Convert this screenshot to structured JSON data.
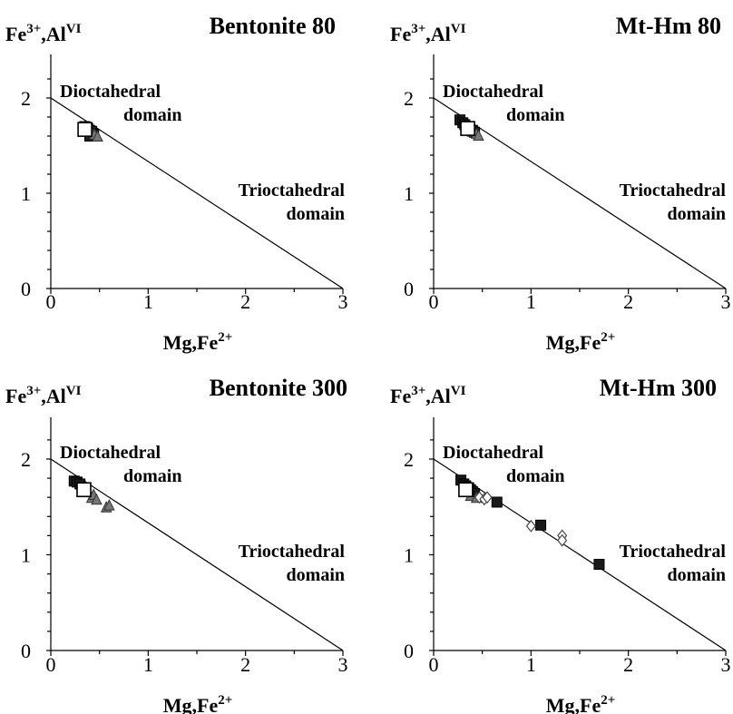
{
  "chart_data": [
    {
      "type": "scatter",
      "title": "Bentonite 80",
      "ylabel": {
        "main": "Fe",
        "sup1": "3+",
        "mid": ",Al",
        "sup2": "VI"
      },
      "xlabel": {
        "main": "Mg,Fe",
        "sup": "2+"
      },
      "xlim": [
        0,
        3
      ],
      "ylim": [
        0,
        2
      ],
      "xticks": [
        "0",
        "1",
        "2",
        "3"
      ],
      "yticks": [
        "0",
        "1",
        "2"
      ],
      "boundary_line": [
        [
          0,
          2
        ],
        [
          3,
          0
        ]
      ],
      "annotations": [
        {
          "lines": [
            "Dioctahedral",
            "domain"
          ]
        },
        {
          "lines": [
            "Trioctahedral",
            "domain"
          ]
        }
      ],
      "series": [
        {
          "marker": "square-dark",
          "points": [
            [
              0.35,
              1.7
            ],
            [
              0.38,
              1.68
            ],
            [
              0.4,
              1.66
            ],
            [
              0.42,
              1.65
            ],
            [
              0.44,
              1.62
            ],
            [
              0.4,
              1.6
            ]
          ]
        },
        {
          "marker": "triangle-grey",
          "points": [
            [
              0.42,
              1.64
            ],
            [
              0.45,
              1.62
            ],
            [
              0.48,
              1.6
            ]
          ]
        },
        {
          "marker": "square-open",
          "points": [
            [
              0.35,
              1.67
            ]
          ]
        }
      ]
    },
    {
      "type": "scatter",
      "title": "Mt-Hm 80",
      "ylabel": {
        "main": "Fe",
        "sup1": "3+",
        "mid": ",Al",
        "sup2": "VI"
      },
      "xlabel": {
        "main": "Mg,Fe",
        "sup": "2+"
      },
      "xlim": [
        0,
        3
      ],
      "ylim": [
        0,
        2
      ],
      "xticks": [
        "0",
        "1",
        "2",
        "3"
      ],
      "yticks": [
        "0",
        "1",
        "2"
      ],
      "boundary_line": [
        [
          0,
          2
        ],
        [
          3,
          0
        ]
      ],
      "annotations": [
        {
          "lines": [
            "Dioctahedral",
            "domain"
          ]
        },
        {
          "lines": [
            "Trioctahedral",
            "domain"
          ]
        }
      ],
      "series": [
        {
          "marker": "square-dark",
          "points": [
            [
              0.27,
              1.77
            ],
            [
              0.3,
              1.74
            ],
            [
              0.32,
              1.72
            ],
            [
              0.34,
              1.7
            ],
            [
              0.37,
              1.68
            ],
            [
              0.4,
              1.66
            ],
            [
              0.42,
              1.64
            ]
          ]
        },
        {
          "marker": "triangle-grey",
          "points": [
            [
              0.4,
              1.65
            ],
            [
              0.44,
              1.63
            ],
            [
              0.46,
              1.61
            ]
          ]
        },
        {
          "marker": "square-open",
          "points": [
            [
              0.35,
              1.68
            ]
          ]
        }
      ]
    },
    {
      "type": "scatter",
      "title": "Bentonite 300",
      "ylabel": {
        "main": "Fe",
        "sup1": "3+",
        "mid": ",Al",
        "sup2": "VI"
      },
      "xlabel": {
        "main": "Mg,Fe",
        "sup": "2+"
      },
      "xlim": [
        0,
        3
      ],
      "ylim": [
        0,
        2
      ],
      "xticks": [
        "0",
        "1",
        "2",
        "3"
      ],
      "yticks": [
        "0",
        "1",
        "2"
      ],
      "boundary_line": [
        [
          0,
          2
        ],
        [
          3,
          0
        ]
      ],
      "annotations": [
        {
          "lines": [
            "Dioctahedral",
            "domain"
          ]
        },
        {
          "lines": [
            "Trioctahedral",
            "domain"
          ]
        }
      ],
      "series": [
        {
          "marker": "square-dark",
          "points": [
            [
              0.24,
              1.77
            ],
            [
              0.27,
              1.76
            ],
            [
              0.3,
              1.74
            ],
            [
              0.32,
              1.7
            ]
          ]
        },
        {
          "marker": "triangle-grey",
          "points": [
            [
              0.42,
              1.6
            ],
            [
              0.44,
              1.63
            ],
            [
              0.47,
              1.58
            ],
            [
              0.57,
              1.5
            ],
            [
              0.6,
              1.52
            ]
          ]
        },
        {
          "marker": "square-open",
          "points": [
            [
              0.34,
              1.68
            ]
          ]
        }
      ]
    },
    {
      "type": "scatter",
      "title": "Mt-Hm 300",
      "ylabel": {
        "main": "Fe",
        "sup1": "3+",
        "mid": ",Al",
        "sup2": "VI"
      },
      "xlabel": {
        "main": "Mg,Fe",
        "sup": "2+"
      },
      "xlim": [
        0,
        3
      ],
      "ylim": [
        0,
        2
      ],
      "xticks": [
        "0",
        "1",
        "2",
        "3"
      ],
      "yticks": [
        "0",
        "1",
        "2"
      ],
      "boundary_line": [
        [
          0,
          2
        ],
        [
          3,
          0
        ]
      ],
      "annotations": [
        {
          "lines": [
            "Dioctahedral",
            "domain"
          ]
        },
        {
          "lines": [
            "Trioctahedral",
            "domain"
          ]
        }
      ],
      "series": [
        {
          "marker": "square-dark",
          "points": [
            [
              0.28,
              1.78
            ],
            [
              0.31,
              1.74
            ],
            [
              0.33,
              1.72
            ],
            [
              0.36,
              1.7
            ],
            [
              0.38,
              1.68
            ],
            [
              0.4,
              1.66
            ],
            [
              0.42,
              1.64
            ],
            [
              0.65,
              1.55
            ],
            [
              1.1,
              1.31
            ],
            [
              1.7,
              0.9
            ]
          ]
        },
        {
          "marker": "triangle-grey",
          "points": [
            [
              0.38,
              1.62
            ],
            [
              0.44,
              1.6
            ]
          ]
        },
        {
          "marker": "diamond-open",
          "points": [
            [
              0.47,
              1.6
            ],
            [
              0.52,
              1.58
            ],
            [
              0.55,
              1.6
            ],
            [
              1.0,
              1.3
            ],
            [
              1.32,
              1.2
            ],
            [
              1.32,
              1.15
            ]
          ]
        },
        {
          "marker": "square-open",
          "points": [
            [
              0.33,
              1.68
            ]
          ]
        }
      ]
    }
  ]
}
